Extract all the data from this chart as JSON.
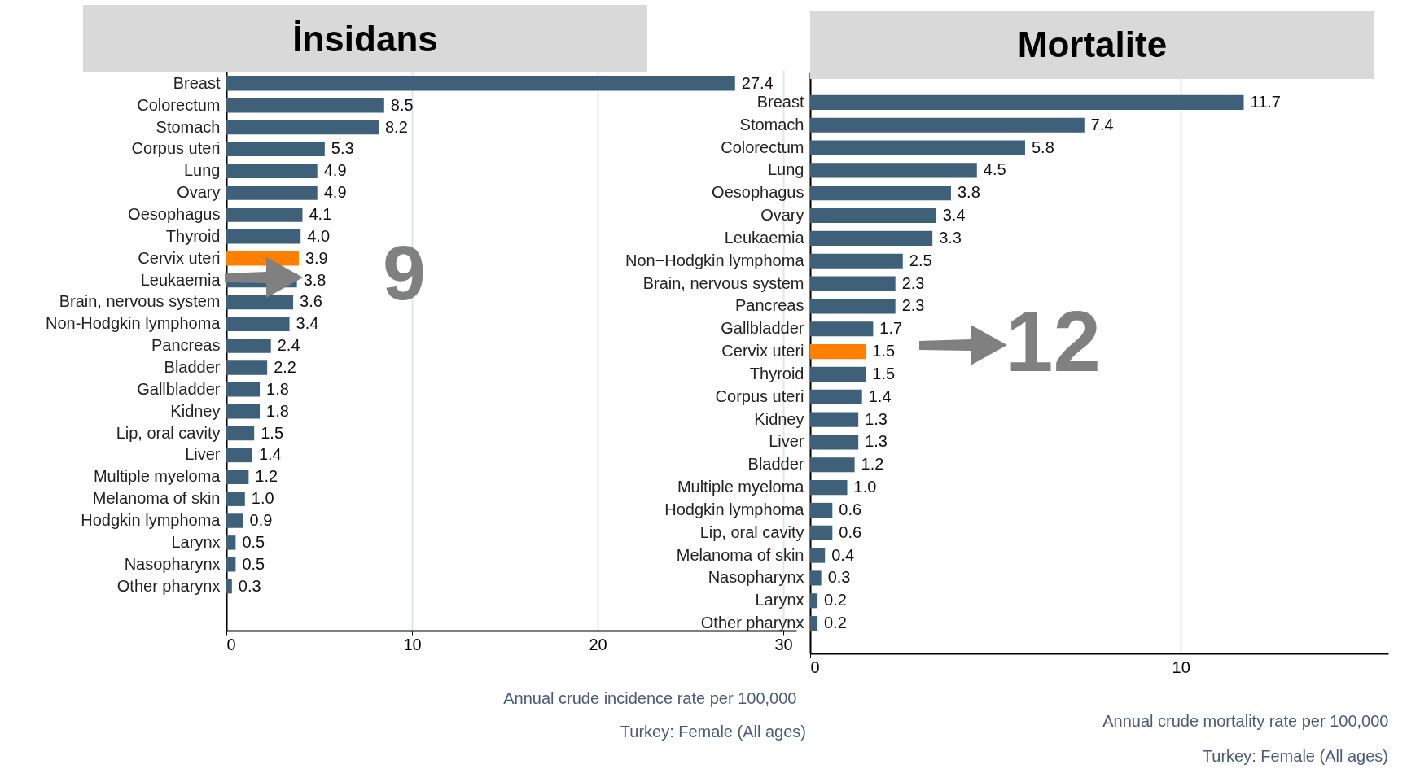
{
  "chart_data": [
    {
      "type": "bar",
      "orientation": "horizontal",
      "title": "İnsidans",
      "xlabel": "Annual crude incidence rate per 100,000",
      "categories": [
        "Breast",
        "Colorectum",
        "Stomach",
        "Corpus uteri",
        "Lung",
        "Ovary",
        "Oesophagus",
        "Thyroid",
        "Cervix uteri",
        "Leukaemia",
        "Brain, nervous system",
        "Non-Hodgkin lymphoma",
        "Pancreas",
        "Bladder",
        "Gallbladder",
        "Kidney",
        "Lip, oral cavity",
        "Liver",
        "Multiple myeloma",
        "Melanoma of skin",
        "Hodgkin lymphoma",
        "Larynx",
        "Nasopharynx",
        "Other pharynx"
      ],
      "values": [
        27.4,
        8.5,
        8.2,
        5.3,
        4.9,
        4.9,
        4.1,
        4.0,
        3.9,
        3.8,
        3.6,
        3.4,
        2.4,
        2.2,
        1.8,
        1.8,
        1.5,
        1.4,
        1.2,
        1.0,
        0.9,
        0.5,
        0.5,
        0.3
      ],
      "colors": [
        "#3e6079",
        "#3e6079",
        "#3e6079",
        "#3e6079",
        "#3e6079",
        "#3e6079",
        "#3e6079",
        "#3e6079",
        "#ff8000",
        "#3e6079",
        "#3e6079",
        "#3e6079",
        "#3e6079",
        "#3e6079",
        "#3e6079",
        "#3e6079",
        "#3e6079",
        "#3e6079",
        "#3e6079",
        "#3e6079",
        "#3e6079",
        "#3e6079",
        "#3e6079",
        "#3e6079"
      ],
      "xlim": [
        0,
        30.7
      ],
      "xticks": [
        0,
        10,
        20,
        30
      ],
      "grid": "x",
      "value_labels": [
        "27.4",
        "8.5",
        "8.2",
        "5.3",
        "4.9",
        "4.9",
        "4.1",
        "4.0",
        "3.9",
        "3.8",
        "3.6",
        "3.4",
        "2.4",
        "2.2",
        "1.8",
        "1.8",
        "1.5",
        "1.4",
        "1.2",
        "1.0",
        "0.9",
        "0.5",
        "0.5",
        "0.3"
      ],
      "annotations": [
        {
          "text": "9",
          "x": 3.9,
          "y": "Cervix uteri"
        },
        "Turkey: Female (All ages)"
      ]
    },
    {
      "type": "bar",
      "orientation": "horizontal",
      "title": "Mortalite",
      "xlabel": "Annual crude mortality rate per 100,000",
      "categories": [
        "Breast",
        "Stomach",
        "Colorectum",
        "Lung",
        "Oesophagus",
        "Ovary",
        "Leukaemia",
        "Non−Hodgkin lymphoma",
        "Brain, nervous system",
        "Pancreas",
        "Gallbladder",
        "Cervix uteri",
        "Thyroid",
        "Corpus uteri",
        "Kidney",
        "Liver",
        "Bladder",
        "Multiple myeloma",
        "Hodgkin lymphoma",
        "Lip, oral cavity",
        "Melanoma of skin",
        "Nasopharynx",
        "Larynx",
        "Other pharynx"
      ],
      "values": [
        11.7,
        7.4,
        5.8,
        4.5,
        3.8,
        3.4,
        3.3,
        2.5,
        2.3,
        2.3,
        1.7,
        1.5,
        1.5,
        1.4,
        1.3,
        1.3,
        1.2,
        1.0,
        0.6,
        0.6,
        0.4,
        0.3,
        0.2,
        0.2
      ],
      "colors": [
        "#3e6079",
        "#3e6079",
        "#3e6079",
        "#3e6079",
        "#3e6079",
        "#3e6079",
        "#3e6079",
        "#3e6079",
        "#3e6079",
        "#3e6079",
        "#3e6079",
        "#ff8000",
        "#3e6079",
        "#3e6079",
        "#3e6079",
        "#3e6079",
        "#3e6079",
        "#3e6079",
        "#3e6079",
        "#3e6079",
        "#3e6079",
        "#3e6079",
        "#3e6079",
        "#3e6079"
      ],
      "xlim": [
        0,
        15.6
      ],
      "xticks": [
        0,
        10
      ],
      "grid": "x",
      "value_labels": [
        "11.7",
        "7.4",
        "5.8",
        "4.5",
        "3.8",
        "3.4",
        "3.3",
        "2.5",
        "2.3",
        "2.3",
        "1.7",
        "1.5",
        "1.5",
        "1.4",
        "1.3",
        "1.3",
        "1.2",
        "1.0",
        "0.6",
        "0.6",
        "0.4",
        "0.3",
        "0.2",
        "0.2"
      ],
      "annotations": [
        {
          "text": "12",
          "x": 1.5,
          "y": "Cervix uteri"
        },
        "Turkey: Female (All ages)"
      ]
    }
  ]
}
